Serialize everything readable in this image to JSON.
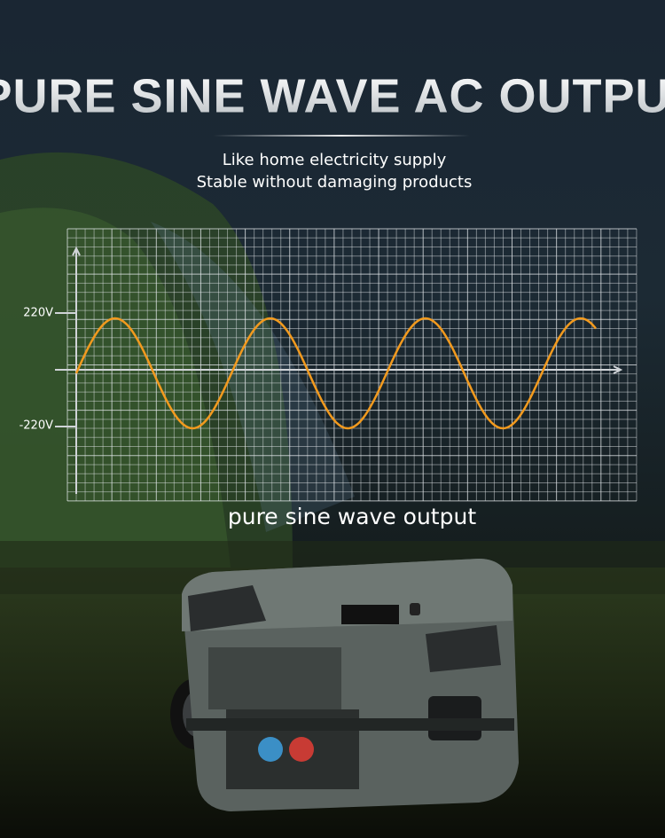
{
  "header": {
    "title": "PURE SINE WAVE AC OUTPUT",
    "subtitle_lines": [
      "Like home electricity supply",
      "Stable without damaging products"
    ]
  },
  "graph": {
    "axis_labels": [
      "220V",
      "-220V"
    ],
    "caption": "pure sine wave output"
  }
}
